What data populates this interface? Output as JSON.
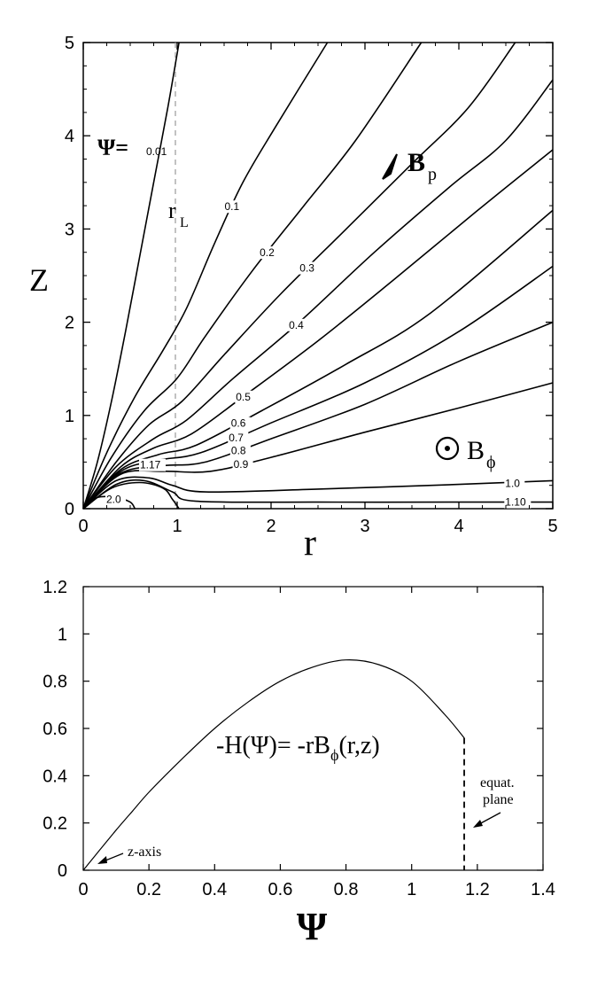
{
  "chart_data": [
    {
      "type": "line",
      "xlabel": "r",
      "ylabel": "Z",
      "xlim": [
        0,
        5
      ],
      "ylim": [
        0,
        5
      ],
      "xticks": [
        "0",
        "1",
        "2",
        "3",
        "4",
        "5"
      ],
      "yticks": [
        "0",
        "1",
        "2",
        "3",
        "4",
        "5"
      ],
      "grid": false,
      "light_cylinder": {
        "label": "r",
        "subscript": "L",
        "x": 1
      },
      "psi_prefix": "Ψ=",
      "bp": {
        "base": "B",
        "sub": "p"
      },
      "bphi": {
        "base": "B",
        "sub": "ϕ"
      },
      "series": [
        {
          "label": "0.01",
          "x": [
            0,
            0.15,
            0.3,
            0.45,
            0.6,
            0.75,
            0.9,
            1.02
          ],
          "y": [
            0,
            0.5,
            1.15,
            1.9,
            2.7,
            3.5,
            4.3,
            5.0
          ]
        },
        {
          "label": "0.1",
          "x": [
            0,
            0.25,
            0.55,
            0.85,
            1.1,
            1.4,
            1.7,
            2.05,
            2.6
          ],
          "y": [
            0,
            0.6,
            1.2,
            1.7,
            2.15,
            2.85,
            3.5,
            4.1,
            5.0
          ]
        },
        {
          "label": "0.2",
          "x": [
            0,
            0.3,
            0.65,
            1.0,
            1.3,
            1.8,
            2.35,
            2.9,
            3.6
          ],
          "y": [
            0,
            0.55,
            1.05,
            1.4,
            1.85,
            2.55,
            3.25,
            3.95,
            5.0
          ]
        },
        {
          "label": "0.3",
          "x": [
            0,
            0.35,
            0.7,
            1.05,
            1.5,
            2.1,
            2.8,
            3.5,
            4.1,
            4.6
          ],
          "y": [
            0,
            0.5,
            0.9,
            1.15,
            1.65,
            2.3,
            3.0,
            3.7,
            4.3,
            5.0
          ]
        },
        {
          "label": "0.4",
          "x": [
            0,
            0.35,
            0.75,
            1.1,
            1.6,
            2.3,
            3.1,
            3.9,
            4.5,
            5.0
          ],
          "y": [
            0,
            0.45,
            0.75,
            0.95,
            1.4,
            2.0,
            2.75,
            3.45,
            3.95,
            4.6
          ]
        },
        {
          "label": "0.5",
          "x": [
            0,
            0.4,
            0.75,
            1.15,
            1.7,
            2.5,
            3.3,
            4.2,
            5.0
          ],
          "y": [
            0,
            0.45,
            0.65,
            0.8,
            1.2,
            1.8,
            2.45,
            3.2,
            3.85
          ]
        },
        {
          "label": "0.6",
          "x": [
            0,
            0.4,
            0.8,
            1.2,
            1.9,
            2.8,
            3.7,
            5.0
          ],
          "y": [
            0,
            0.42,
            0.58,
            0.68,
            1.05,
            1.55,
            2.1,
            3.2
          ]
        },
        {
          "label": "0.7",
          "x": [
            0,
            0.4,
            0.8,
            1.25,
            2.0,
            3.0,
            4.0,
            5.0
          ],
          "y": [
            0,
            0.4,
            0.52,
            0.6,
            0.92,
            1.35,
            1.9,
            2.6
          ]
        },
        {
          "label": "0.8",
          "x": [
            0,
            0.4,
            0.85,
            1.3,
            2.0,
            3.0,
            4.0,
            5.0
          ],
          "y": [
            0,
            0.38,
            0.46,
            0.5,
            0.75,
            1.12,
            1.58,
            2.0
          ]
        },
        {
          "label": "0.9",
          "x": [
            0,
            0.4,
            0.85,
            1.35,
            2.0,
            3.0,
            4.0,
            5.0
          ],
          "y": [
            0,
            0.37,
            0.4,
            0.4,
            0.55,
            0.82,
            1.08,
            1.35
          ]
        },
        {
          "label": "1.0",
          "x": [
            0,
            0.35,
            0.7,
            0.95,
            1.3,
            2.5,
            4.0,
            5.0
          ],
          "y": [
            0,
            0.3,
            0.33,
            0.25,
            0.18,
            0.21,
            0.26,
            0.3
          ]
        },
        {
          "label": "1.10",
          "x": [
            0,
            0.35,
            0.65,
            0.95,
            1.2,
            2.5,
            4.0,
            5.0
          ],
          "y": [
            0,
            0.26,
            0.3,
            0.18,
            0.08,
            0.07,
            0.07,
            0.07
          ]
        },
        {
          "label": "1.17",
          "x": [
            0,
            0.3,
            0.6,
            0.85,
            0.95,
            1.02
          ],
          "y": [
            0,
            0.22,
            0.28,
            0.22,
            0.1,
            0.0
          ]
        },
        {
          "label": "2.0",
          "x": [
            0,
            0.15,
            0.35,
            0.5,
            0.55
          ],
          "y": [
            0,
            0.12,
            0.12,
            0.07,
            0.0
          ]
        }
      ]
    },
    {
      "type": "line",
      "xlabel": "Ψ",
      "ylabel": "",
      "xlim": [
        0,
        1.4
      ],
      "ylim": [
        0,
        1.2
      ],
      "xticks": [
        "0",
        "0.2",
        "0.4",
        "0.6",
        "0.8",
        "1",
        "1.2",
        "1.4"
      ],
      "yticks": [
        "0",
        "0.2",
        "0.4",
        "0.6",
        "0.8",
        "1",
        "1.2"
      ],
      "grid": false,
      "equation": "-H(Ψ)= -rBϕ(r,z)",
      "equation_parts": {
        "pre": "-H(Ψ)= -rB",
        "sub": "ϕ",
        "post": "(r,z)"
      },
      "annotations": {
        "z_axis": "z-axis",
        "equat_1": "equat.",
        "equat_2": "plane"
      },
      "series": [
        {
          "x": [
            0,
            0.05,
            0.1,
            0.15,
            0.2,
            0.3,
            0.4,
            0.5,
            0.6,
            0.7,
            0.8,
            0.9,
            1.0,
            1.1,
            1.16
          ],
          "y": [
            0,
            0.085,
            0.17,
            0.25,
            0.33,
            0.47,
            0.6,
            0.71,
            0.8,
            0.86,
            0.89,
            0.87,
            0.8,
            0.66,
            0.56
          ]
        },
        {
          "style": "dashed",
          "x": [
            1.16,
            1.16
          ],
          "y": [
            0.56,
            0
          ]
        }
      ]
    }
  ]
}
